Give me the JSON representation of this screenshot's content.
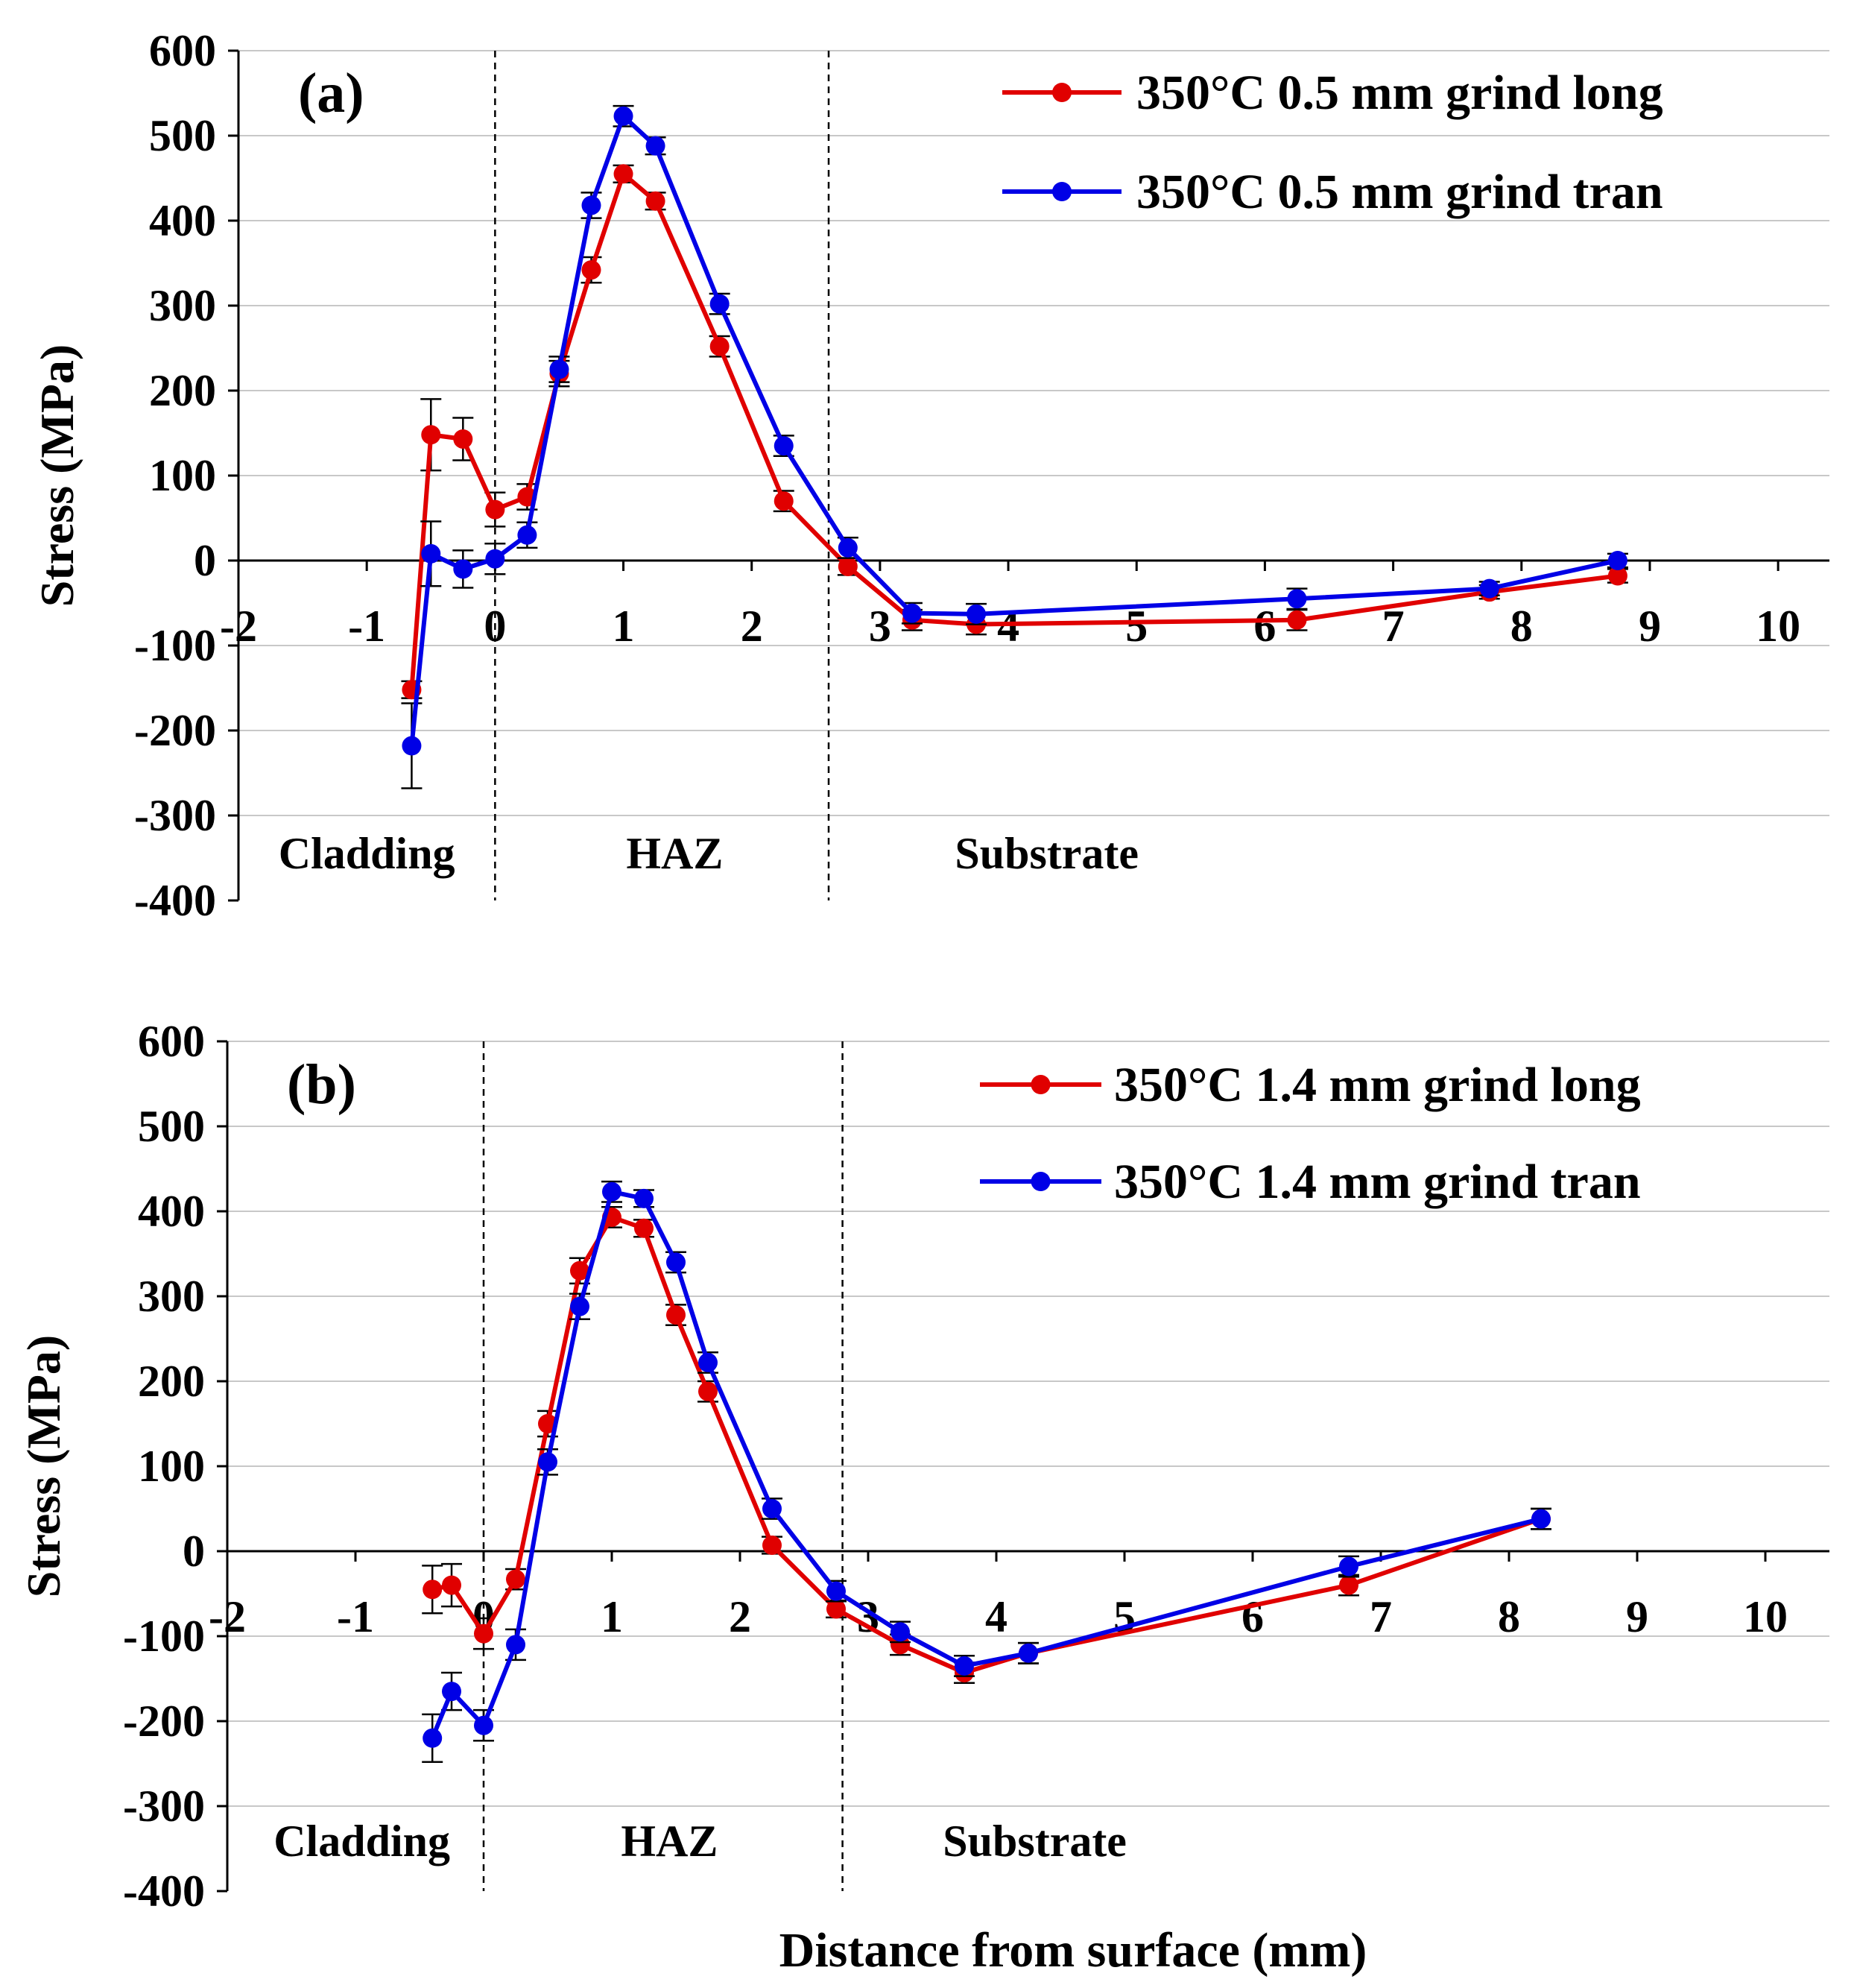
{
  "xlabel": "Distance from surface (mm)",
  "chart_data": [
    {
      "type": "line",
      "panel_label": "(a)",
      "title": "",
      "ylabel": "Stress (MPa)",
      "xlim": [
        -2,
        10.4
      ],
      "ylim": [
        -400,
        600
      ],
      "x_ticks": [
        -2,
        -1,
        0,
        1,
        2,
        3,
        4,
        5,
        6,
        7,
        8,
        9,
        10
      ],
      "y_ticks": [
        -400,
        -300,
        -200,
        -100,
        0,
        100,
        200,
        300,
        400,
        500,
        600
      ],
      "grid": true,
      "legend_position": "top-right",
      "region_boundaries": [
        0,
        2.6
      ],
      "regions": [
        {
          "label": "Cladding",
          "x": -1
        },
        {
          "label": "HAZ",
          "x": 1.4
        },
        {
          "label": "Substrate",
          "x": 4.3
        }
      ],
      "series": [
        {
          "name": "350°C 0.5 mm grind long",
          "color": "#e00000",
          "x": [
            -0.65,
            -0.5,
            -0.25,
            0,
            0.25,
            0.5,
            0.75,
            1,
            1.25,
            1.75,
            2.25,
            2.75,
            3.25,
            3.75,
            6.25,
            7.75,
            8.75
          ],
          "y": [
            -152,
            148,
            143,
            60,
            75,
            220,
            342,
            455,
            423,
            252,
            70,
            -7,
            -70,
            -75,
            -70,
            -37,
            -18
          ],
          "err": [
            10,
            42,
            25,
            20,
            15,
            15,
            15,
            10,
            10,
            12,
            12,
            10,
            12,
            12,
            12,
            8,
            8
          ]
        },
        {
          "name": "350°C 0.5 mm grind tran",
          "color": "#0000e6",
          "x": [
            -0.65,
            -0.5,
            -0.25,
            0,
            0.25,
            0.5,
            0.75,
            1,
            1.25,
            1.75,
            2.25,
            2.75,
            3.25,
            3.75,
            6.25,
            7.75,
            8.75
          ],
          "y": [
            -218,
            8,
            -10,
            2,
            30,
            225,
            418,
            523,
            488,
            302,
            135,
            15,
            -62,
            -63,
            -45,
            -33,
            0
          ],
          "err": [
            50,
            38,
            22,
            18,
            15,
            15,
            15,
            12,
            10,
            12,
            12,
            12,
            12,
            12,
            12,
            8,
            8
          ]
        }
      ]
    },
    {
      "type": "line",
      "panel_label": "(b)",
      "title": "",
      "ylabel": "Stress (MPa)",
      "xlim": [
        -2,
        10.5
      ],
      "ylim": [
        -400,
        600
      ],
      "x_ticks": [
        -2,
        -1,
        0,
        1,
        2,
        3,
        4,
        5,
        6,
        7,
        8,
        9,
        10
      ],
      "y_ticks": [
        -400,
        -300,
        -200,
        -100,
        0,
        100,
        200,
        300,
        400,
        500,
        600
      ],
      "grid": true,
      "legend_position": "top-right",
      "region_boundaries": [
        0,
        2.8
      ],
      "regions": [
        {
          "label": "Cladding",
          "x": -0.95
        },
        {
          "label": "HAZ",
          "x": 1.45
        },
        {
          "label": "Substrate",
          "x": 4.3
        }
      ],
      "series": [
        {
          "name": "350°C 1.4 mm grind long",
          "color": "#e00000",
          "x": [
            -0.4,
            -0.25,
            0,
            0.25,
            0.5,
            0.75,
            1,
            1.25,
            1.5,
            1.75,
            2.25,
            2.75,
            3.25,
            3.75,
            4.25,
            6.75,
            8.25
          ],
          "y": [
            -45,
            -40,
            -97,
            -33,
            150,
            330,
            393,
            380,
            278,
            188,
            7,
            -68,
            -110,
            -143,
            -120,
            -40,
            38
          ],
          "err": [
            28,
            25,
            18,
            12,
            15,
            15,
            12,
            10,
            12,
            12,
            10,
            10,
            12,
            12,
            12,
            12,
            12
          ]
        },
        {
          "name": "350°C 1.4 mm grind tran",
          "color": "#0000e6",
          "x": [
            -0.4,
            -0.25,
            0,
            0.25,
            0.5,
            0.75,
            1,
            1.25,
            1.5,
            1.75,
            2.25,
            2.75,
            3.25,
            3.75,
            4.25,
            6.75,
            8.25
          ],
          "y": [
            -220,
            -165,
            -205,
            -110,
            105,
            288,
            423,
            415,
            340,
            222,
            50,
            -47,
            -95,
            -135,
            -120,
            -18,
            38
          ],
          "err": [
            28,
            22,
            18,
            18,
            15,
            15,
            12,
            10,
            12,
            12,
            12,
            12,
            12,
            12,
            12,
            12,
            12
          ]
        }
      ]
    }
  ]
}
